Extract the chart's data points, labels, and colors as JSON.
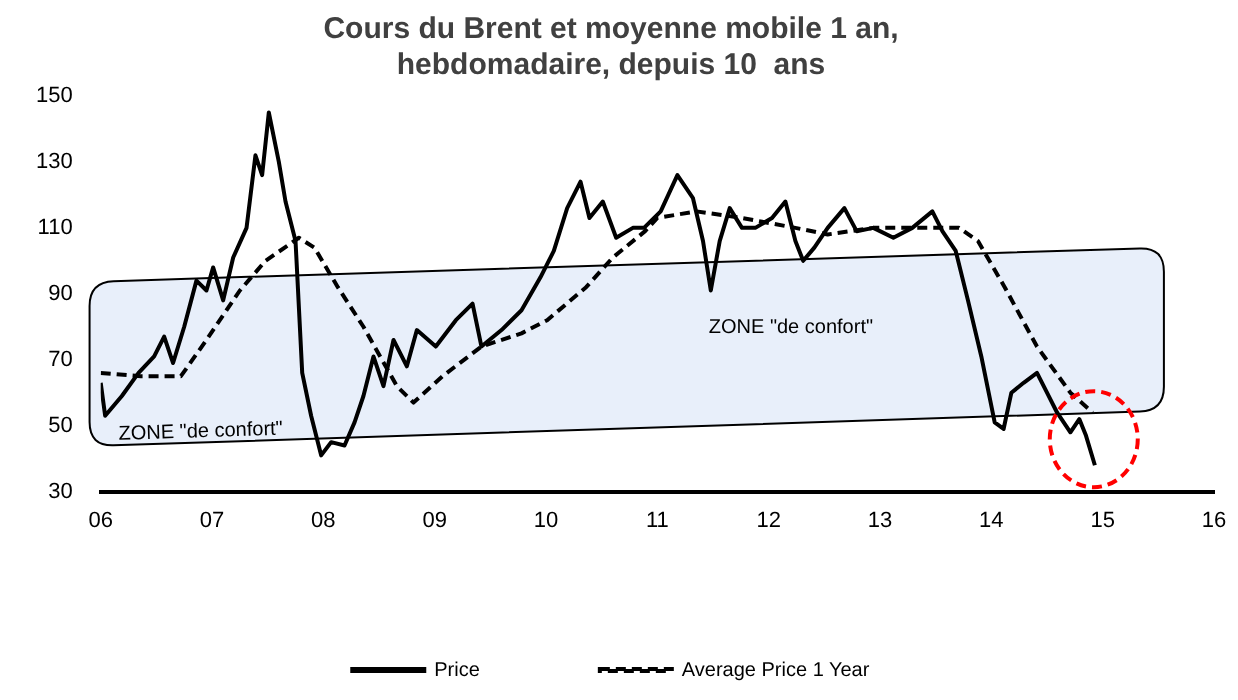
{
  "chart_data": {
    "type": "line",
    "title": "Cours du Brent et moyenne mobile 1 an,\nhebdomadaire, depuis 10  ans",
    "series": [
      {
        "name": "Price",
        "color": "#000000",
        "line_style": "solid",
        "x": [
          2006.0,
          2006.04,
          2006.19,
          2006.34,
          2006.48,
          2006.57,
          2006.65,
          2006.75,
          2006.86,
          2006.95,
          2007.01,
          2007.1,
          2007.19,
          2007.31,
          2007.39,
          2007.45,
          2007.51,
          2007.6,
          2007.66,
          2007.75,
          2007.81,
          2007.89,
          2007.98,
          2008.07,
          2008.19,
          2008.28,
          2008.36,
          2008.45,
          2008.54,
          2008.63,
          2008.75,
          2008.84,
          2009.01,
          2009.19,
          2009.34,
          2009.42,
          2009.6,
          2009.78,
          2009.95,
          2010.07,
          2010.19,
          2010.31,
          2010.39,
          2010.51,
          2010.63,
          2010.78,
          2010.88,
          2011.03,
          2011.18,
          2011.32,
          2011.41,
          2011.48,
          2011.56,
          2011.65,
          2011.76,
          2011.88,
          2012.03,
          2012.15,
          2012.24,
          2012.31,
          2012.41,
          2012.53,
          2012.68,
          2012.79,
          2012.94,
          2013.12,
          2013.29,
          2013.47,
          2013.56,
          2013.68,
          2013.79,
          2013.91,
          2014.03,
          2014.11,
          2014.18,
          2014.29,
          2014.41,
          2014.5,
          2014.59,
          2014.71,
          2014.79,
          2014.85,
          2014.93
        ],
        "values": [
          63,
          53,
          59,
          66,
          71,
          77,
          69,
          80,
          94,
          91,
          98,
          88,
          101,
          110,
          132,
          126,
          145,
          130,
          118,
          106,
          66,
          53,
          41,
          45,
          44,
          51,
          59,
          71,
          62,
          76,
          68,
          79,
          74,
          82,
          87,
          74,
          79,
          85,
          95,
          103,
          116,
          124,
          113,
          118,
          107,
          110,
          110,
          115,
          126,
          119,
          106,
          91,
          106,
          116,
          110,
          110,
          113,
          118,
          106,
          100,
          104,
          110,
          116,
          109,
          110,
          107,
          110,
          115,
          109,
          103,
          88,
          71,
          51,
          49,
          60,
          63,
          66,
          60,
          54,
          48,
          52,
          47,
          38
        ]
      },
      {
        "name": "Average Price 1 Year",
        "color": "#000000",
        "line_style": "dashed",
        "x": [
          2006.0,
          2006.36,
          2006.72,
          2006.95,
          2007.25,
          2007.48,
          2007.78,
          2007.92,
          2008.13,
          2008.36,
          2008.51,
          2008.66,
          2008.81,
          2009.07,
          2009.42,
          2009.78,
          2010.01,
          2010.36,
          2010.6,
          2010.89,
          2011.0,
          2011.35,
          2011.76,
          2012.24,
          2012.53,
          2012.94,
          2013.41,
          2013.71,
          2013.88,
          2014.12,
          2014.41,
          2014.71,
          2014.91
        ],
        "values": [
          66,
          65,
          65,
          76,
          91,
          100,
          107,
          104,
          92,
          80,
          71,
          62,
          57,
          65,
          74,
          78,
          82,
          92,
          101,
          109,
          113,
          115,
          113,
          110,
          108,
          110,
          110,
          110,
          106,
          92,
          74,
          60,
          54
        ]
      }
    ],
    "xlim": [
      2006,
      2016
    ],
    "xticks": [
      {
        "value": 2006,
        "label": "06"
      },
      {
        "value": 2007,
        "label": "07"
      },
      {
        "value": 2008,
        "label": "08"
      },
      {
        "value": 2009,
        "label": "09"
      },
      {
        "value": 2010,
        "label": "10"
      },
      {
        "value": 2011,
        "label": "11"
      },
      {
        "value": 2012,
        "label": "12"
      },
      {
        "value": 2013,
        "label": "13"
      },
      {
        "value": 2014,
        "label": "14"
      },
      {
        "value": 2015,
        "label": "15"
      },
      {
        "value": 2016,
        "label": "16"
      }
    ],
    "ylim": [
      30,
      150
    ],
    "yticks": [
      30,
      50,
      70,
      90,
      110,
      130,
      150
    ],
    "annotations": [
      "ZONE \"de confort\"",
      "ZONE \"de confort\""
    ],
    "grid": false,
    "legend": "bottom",
    "marker": "none"
  }
}
